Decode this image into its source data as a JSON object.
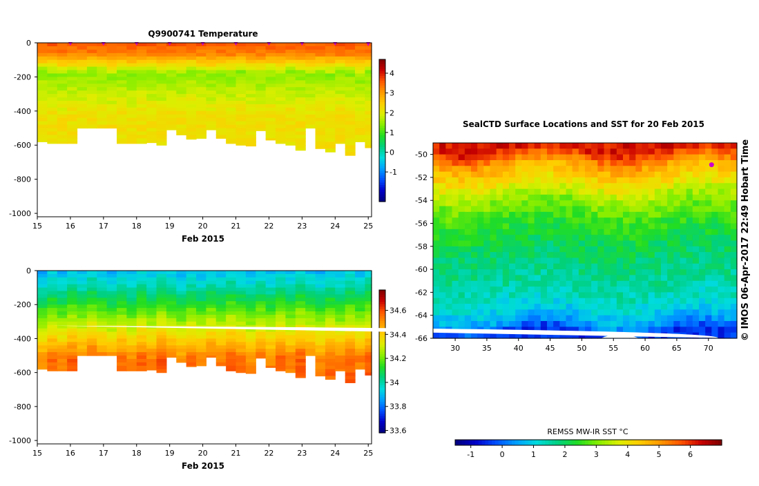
{
  "colors": {
    "ramp": [
      "#00007d",
      "#0000c8",
      "#0050ff",
      "#00a0ff",
      "#00dcdc",
      "#00d080",
      "#22dd22",
      "#88ee00",
      "#ddee00",
      "#ffcc00",
      "#ff9900",
      "#ff5500",
      "#c80000",
      "#7d0000"
    ],
    "marker": "#cc00cc",
    "land": "#ffffff"
  },
  "side_note": "© IMOS 06-Apr-2017 22:49 Hobart Time",
  "chart_data": [
    {
      "id": "temperature",
      "type": "heatmap",
      "title": "Q9900741  Temperature",
      "xlabel": "Feb 2015",
      "ylabel": "",
      "x_ticks": [
        "15",
        "16",
        "17",
        "18",
        "19",
        "20",
        "21",
        "22",
        "23",
        "24",
        "25"
      ],
      "y_ticks": [
        "0",
        "-200",
        "-400",
        "-600",
        "-800",
        "-1000"
      ],
      "xlim": [
        15,
        25.1
      ],
      "ylim": [
        -1020,
        0
      ],
      "profile_times": [
        15,
        15.3,
        15.6,
        15.9,
        16.2,
        16.5,
        16.8,
        17.1,
        17.4,
        17.7,
        18.0,
        18.3,
        18.6,
        18.9,
        19.2,
        19.5,
        19.8,
        20.1,
        20.4,
        20.7,
        21.0,
        21.3,
        21.6,
        21.9,
        22.2,
        22.5,
        22.8,
        23.1,
        23.4,
        23.7,
        24.0,
        24.3,
        24.6,
        24.9
      ],
      "profile_depths": [
        580,
        590,
        590,
        590,
        500,
        500,
        500,
        500,
        590,
        590,
        590,
        585,
        600,
        510,
        540,
        565,
        560,
        510,
        560,
        590,
        600,
        605,
        515,
        570,
        590,
        600,
        630,
        500,
        620,
        640,
        590,
        660,
        580,
        615
      ],
      "surface_marker_times": [
        16,
        17,
        18,
        19,
        20,
        21,
        22,
        23,
        24,
        25
      ],
      "profile_shape": {
        "surface_value": 3.6,
        "minimum_value": 1.4,
        "minimum_depth": 180,
        "deep_value": 2.2
      },
      "colorbar": {
        "ticks": [
          "4",
          "3",
          "2",
          "1",
          "0",
          "-1"
        ],
        "range": [
          -2.5,
          4.7
        ],
        "tick_values": [
          4,
          3,
          2,
          1,
          0,
          -1
        ]
      },
      "marker_color": "#cc00cc"
    },
    {
      "id": "salinity",
      "type": "heatmap",
      "title": "",
      "xlabel": "Feb 2015",
      "ylabel": "",
      "x_ticks": [
        "15",
        "16",
        "17",
        "18",
        "19",
        "20",
        "21",
        "22",
        "23",
        "24",
        "25"
      ],
      "y_ticks": [
        "0",
        "-200",
        "-400",
        "-600",
        "-800",
        "-1000"
      ],
      "xlim": [
        15,
        25.1
      ],
      "ylim": [
        -1020,
        0
      ],
      "profile_times": [
        15,
        15.3,
        15.6,
        15.9,
        16.2,
        16.5,
        16.8,
        17.1,
        17.4,
        17.7,
        18.0,
        18.3,
        18.6,
        18.9,
        19.2,
        19.5,
        19.8,
        20.1,
        20.4,
        20.7,
        21.0,
        21.3,
        21.6,
        21.9,
        22.2,
        22.5,
        22.8,
        23.1,
        23.4,
        23.7,
        24.0,
        24.3,
        24.6,
        24.9
      ],
      "profile_depths": [
        580,
        590,
        590,
        590,
        500,
        500,
        500,
        500,
        590,
        590,
        590,
        585,
        600,
        510,
        540,
        565,
        560,
        510,
        560,
        590,
        600,
        605,
        515,
        570,
        590,
        600,
        630,
        500,
        620,
        640,
        590,
        660,
        580,
        615
      ],
      "profile_shape": {
        "surface_value": 33.9,
        "deep_value": 34.55
      },
      "colorbar": {
        "ticks": [
          "34.6",
          "34.4",
          "34.2",
          "34",
          "33.8",
          "33.6"
        ],
        "range": [
          33.58,
          34.77
        ],
        "tick_values": [
          34.6,
          34.4,
          34.2,
          34.0,
          33.8,
          33.6
        ]
      }
    },
    {
      "id": "sst",
      "type": "heatmap",
      "title": "SealCTD Surface Locations and SST for 20 Feb 2015",
      "xlabel": "",
      "ylabel": "",
      "x_ticks": [
        "30",
        "35",
        "40",
        "45",
        "50",
        "55",
        "60",
        "65",
        "70"
      ],
      "y_ticks": [
        "-50",
        "-52",
        "-54",
        "-56",
        "-58",
        "-60",
        "-62",
        "-64",
        "-66"
      ],
      "xlim": [
        26.5,
        74.5
      ],
      "ylim": [
        -66,
        -49
      ],
      "sst_by_latitude": [
        {
          "lat": -49.5,
          "value": 6.2
        },
        {
          "lat": -51.0,
          "value": 4.8
        },
        {
          "lat": -52.5,
          "value": 4.0
        },
        {
          "lat": -54.0,
          "value": 3.1
        },
        {
          "lat": -56.0,
          "value": 2.5
        },
        {
          "lat": -58.0,
          "value": 2.0
        },
        {
          "lat": -61.0,
          "value": 1.6
        },
        {
          "lat": -63.0,
          "value": 1.2
        },
        {
          "lat": -64.5,
          "value": 0.6
        },
        {
          "lat": -65.5,
          "value": -0.4
        }
      ],
      "surface_location": {
        "lon": 70.5,
        "lat": -50.9
      },
      "colorbar": {
        "label": "REMSS MW-IR SST °C",
        "ticks": [
          "-1",
          "0",
          "1",
          "2",
          "3",
          "4",
          "5",
          "6"
        ],
        "range": [
          -1.5,
          7.0
        ],
        "tick_values": [
          -1,
          0,
          1,
          2,
          3,
          4,
          5,
          6
        ]
      }
    }
  ]
}
